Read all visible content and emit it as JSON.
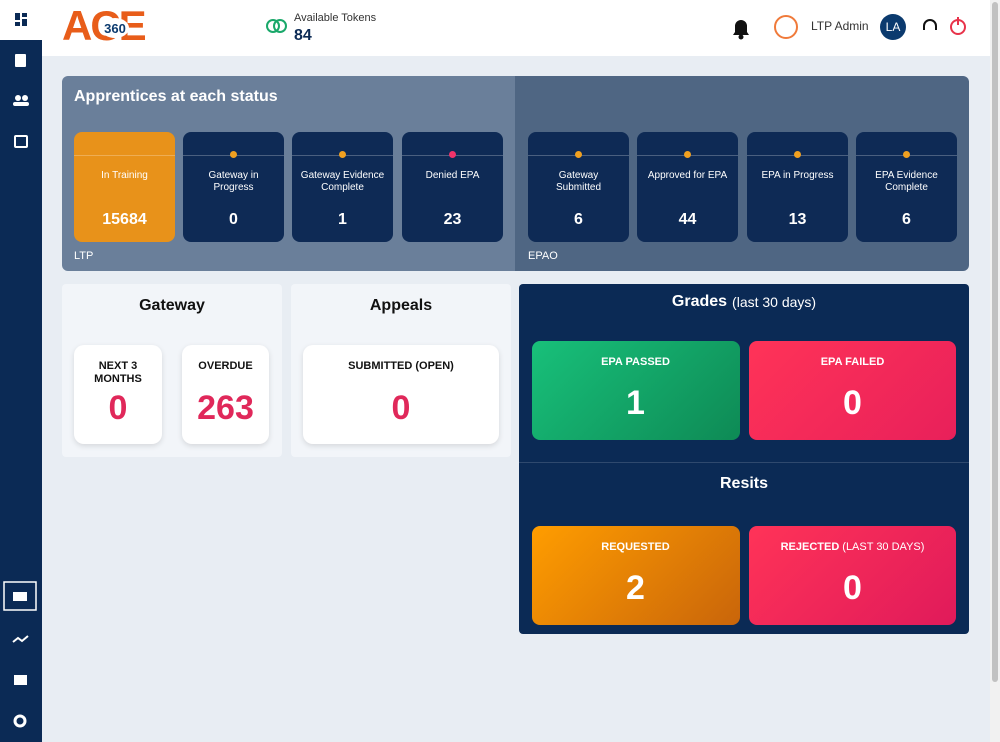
{
  "header": {
    "logo": "ACE",
    "logo_badge": "360",
    "tokens_label": "Available Tokens",
    "tokens_value": 84,
    "user_name": "LTP Admin",
    "user_initials": "LA"
  },
  "status_panel": {
    "title": "Apprentices at each status",
    "groups": [
      {
        "label": "LTP",
        "stages": [
          {
            "label": "In Training",
            "value": 15684,
            "color": "#e8921a"
          },
          {
            "label": "Gateway in Progress",
            "value": 0,
            "color": "#f0a020"
          },
          {
            "label": "Gateway Evidence Complete",
            "value": 1,
            "color": "#f0a020"
          },
          {
            "label": "Denied EPA",
            "value": 23,
            "color": "#f0336a"
          }
        ]
      },
      {
        "label": "EPAO",
        "stages": [
          {
            "label": "Gateway Submitted",
            "value": 6,
            "color": "#f0a020"
          },
          {
            "label": "Approved for EPA",
            "value": 44,
            "color": "#f0a020"
          },
          {
            "label": "EPA in Progress",
            "value": 13,
            "color": "#f0a020"
          },
          {
            "label": "EPA Evidence Complete",
            "value": 6,
            "color": "#f0a020"
          }
        ]
      }
    ]
  },
  "gateway": {
    "title": "Gateway",
    "cards": [
      {
        "label": "NEXT 3 MONTHS",
        "value": 0
      },
      {
        "label": "OVERDUE",
        "value": 263
      }
    ]
  },
  "appeals": {
    "title": "Appeals",
    "cards": [
      {
        "label": "SUBMITTED (OPEN)",
        "value": 0
      }
    ]
  },
  "grades": {
    "title": "Grades",
    "subtitle": "(last 30 days)",
    "cards": [
      {
        "label": "EPA PASSED",
        "value": 1
      },
      {
        "label": "EPA FAILED",
        "value": 0
      }
    ]
  },
  "resits": {
    "title": "Resits",
    "cards": [
      {
        "label": "REQUESTED",
        "value": 2
      },
      {
        "label": "REJECTED",
        "note": "(LAST 30 DAYS)",
        "value": 0
      }
    ]
  }
}
